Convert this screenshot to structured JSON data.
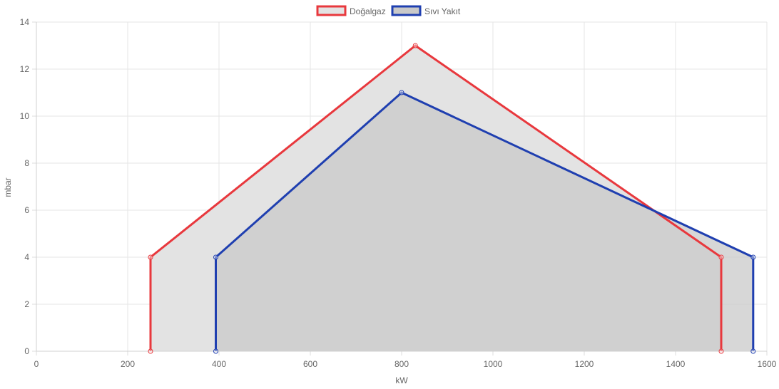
{
  "chart_data": {
    "type": "area",
    "xlabel": "kW",
    "ylabel": "mbar",
    "xlim": [
      0,
      1600
    ],
    "ylim": [
      0,
      14
    ],
    "x_ticks": [
      0,
      200,
      400,
      600,
      800,
      1000,
      1200,
      1400,
      1600
    ],
    "y_ticks": [
      0,
      2,
      4,
      6,
      8,
      10,
      12,
      14
    ],
    "grid": true,
    "legend_position": "top",
    "series": [
      {
        "name": "Doğalgaz",
        "color": "#e8383d",
        "fill": "#e3e3e3",
        "points": [
          [
            250,
            0
          ],
          [
            250,
            4
          ],
          [
            830,
            13
          ],
          [
            1500,
            4
          ],
          [
            1500,
            0
          ]
        ]
      },
      {
        "name": "Sıvı Yakıt",
        "color": "#1f3fb0",
        "fill": "#c9c9c9",
        "points": [
          [
            393,
            0
          ],
          [
            393,
            4
          ],
          [
            800,
            11
          ],
          [
            1570,
            4
          ],
          [
            1570,
            0
          ]
        ]
      }
    ]
  }
}
